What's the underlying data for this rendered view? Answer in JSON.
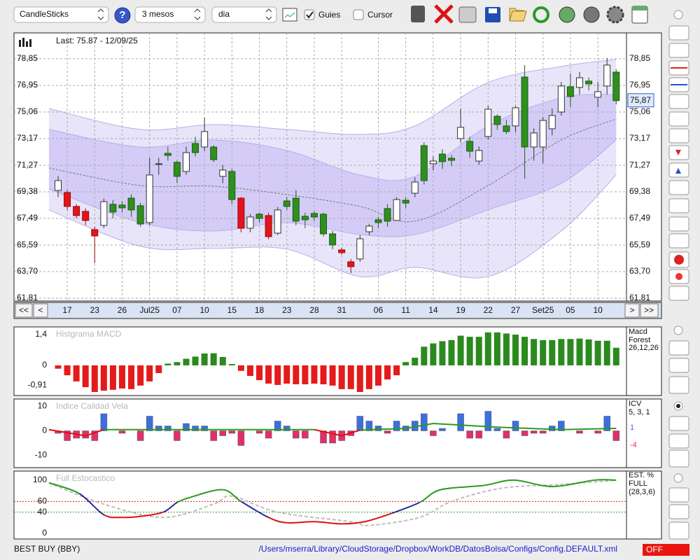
{
  "toolbar": {
    "chart_type": "CandleSticks",
    "help": "?",
    "period": "3 mesos",
    "interval": "dia",
    "guides_label": "Guies",
    "guides_checked": true,
    "cursor_label": "Cursor",
    "cursor_checked": false
  },
  "nav": {
    "first": "<<",
    "prev": "<",
    "next": ">",
    "last": ">>"
  },
  "status": {
    "symbol": "BEST BUY (BBY)",
    "config_path": "/Users/mserra/Library/CloudStorage/Dropbox/WorkDB/DatosBolsa/Configs/Config.DEFAULT.xml",
    "mode": "OFF"
  },
  "chart_data": [
    {
      "type": "candlestick",
      "info": "Last: 75.87 - 12/09/25",
      "last_label": "75,87",
      "grid": true,
      "categories": [
        null,
        "17",
        null,
        null,
        "23",
        null,
        null,
        "26",
        null,
        null,
        "Jul25",
        null,
        null,
        "07",
        null,
        null,
        "10",
        null,
        null,
        "15",
        null,
        null,
        "18",
        null,
        null,
        "23",
        null,
        null,
        "28",
        null,
        null,
        "31",
        null,
        null,
        null,
        "06",
        null,
        null,
        "11",
        null,
        null,
        "14",
        null,
        null,
        "19",
        null,
        null,
        "22",
        null,
        null,
        "27",
        null,
        null,
        "Set25",
        null,
        null,
        "05",
        null,
        null,
        "10",
        null,
        null
      ],
      "open": [
        69.48,
        69.33,
        68.34,
        67.99,
        66.69,
        66.99,
        68.49,
        68.44,
        68.93,
        68.39,
        67.19,
        71.33,
        72.12,
        71.48,
        70.83,
        72.82,
        72.57,
        72.57,
        70.48,
        70.83,
        68.93,
        66.79,
        67.79,
        67.69,
        66.44,
        68.73,
        68.93,
        67.64,
        67.84,
        67.79,
        66.39,
        65.25,
        64.4,
        64.6,
        66.54,
        67.39,
        68.19,
        67.34,
        68.78,
        69.28,
        72.67,
        71.38,
        72.07,
        71.77,
        73.17,
        72.97,
        71.57,
        73.32,
        74.76,
        74.07,
        74.07,
        77.55,
        72.57,
        72.57,
        73.87,
        75.06,
        76.86,
        76.81,
        77.26,
        76.11,
        76.91,
        77.9
      ],
      "high": [
        70.5,
        69.5,
        68.5,
        68.2,
        66.9,
        68.9,
        68.8,
        68.7,
        69.2,
        68.6,
        71.8,
        71.8,
        72.6,
        71.6,
        72.6,
        73.3,
        74.65,
        72.7,
        71.3,
        71.0,
        69.0,
        67.8,
        67.9,
        67.9,
        68.3,
        69.0,
        69.5,
        67.9,
        68.0,
        67.9,
        66.6,
        65.4,
        64.6,
        66.3,
        67.1,
        67.6,
        68.5,
        69.0,
        69.0,
        70.4,
        72.9,
        71.9,
        72.4,
        72.0,
        75.3,
        73.3,
        72.6,
        75.5,
        74.9,
        74.5,
        75.5,
        78.4,
        73.9,
        74.7,
        75.3,
        77.2,
        77.8,
        77.9,
        77.5,
        77.2,
        78.9,
        78.1
      ],
      "low": [
        69.0,
        68.1,
        67.5,
        67.0,
        64.3,
        66.8,
        67.5,
        67.9,
        67.6,
        66.9,
        67.0,
        70.6,
        71.6,
        70.0,
        70.6,
        71.9,
        72.3,
        71.5,
        70.0,
        68.5,
        66.5,
        66.5,
        67.2,
        66.0,
        66.3,
        68.1,
        67.0,
        66.8,
        67.3,
        66.2,
        65.3,
        64.9,
        63.6,
        64.4,
        66.3,
        66.8,
        66.9,
        67.3,
        68.2,
        69.0,
        69.9,
        70.9,
        71.0,
        71.2,
        72.9,
        71.8,
        71.3,
        73.1,
        73.8,
        73.5,
        73.6,
        70.3,
        71.6,
        71.4,
        73.4,
        74.8,
        75.4,
        76.3,
        76.6,
        75.4,
        76.3,
        75.6
      ],
      "close": [
        70.18,
        68.34,
        67.69,
        67.34,
        66.24,
        68.68,
        67.94,
        68.24,
        68.09,
        67.09,
        70.58,
        71.38,
        71.97,
        70.48,
        72.17,
        72.17,
        73.67,
        71.67,
        70.93,
        68.83,
        66.79,
        67.59,
        67.49,
        66.19,
        68.09,
        68.34,
        67.29,
        67.39,
        67.59,
        66.39,
        65.6,
        65.05,
        64.05,
        66.04,
        66.94,
        67.19,
        67.29,
        68.83,
        68.58,
        70.08,
        70.18,
        71.57,
        71.53,
        71.62,
        73.97,
        72.27,
        72.32,
        75.26,
        74.17,
        73.67,
        75.36,
        72.57,
        73.57,
        74.46,
        74.81,
        76.91,
        76.16,
        77.5,
        77.06,
        76.51,
        78.4,
        75.87
      ],
      "candle_colors": [
        "#ffffff",
        "#e3141b",
        "#e3141b",
        "#e3141b",
        "#e3141b",
        "#ffffff",
        "#2f8f1f",
        "#2f8f1f",
        "#2f8f1f",
        "#2f8f1f",
        "#ffffff",
        "#ffffff",
        "#2f8f1f",
        "#2f8f1f",
        "#ffffff",
        "#2f8f1f",
        "#ffffff",
        "#2f8f1f",
        "#ffffff",
        "#2f8f1f",
        "#e3141b",
        "#ffffff",
        "#2f8f1f",
        "#e3141b",
        "#ffffff",
        "#2f8f1f",
        "#2f8f1f",
        "#2f8f1f",
        "#2f8f1f",
        "#2f8f1f",
        "#2f8f1f",
        "#e3141b",
        "#e3141b",
        "#ffffff",
        "#ffffff",
        "#2f8f1f",
        "#2f8f1f",
        "#ffffff",
        "#2f8f1f",
        "#ffffff",
        "#2f8f1f",
        "#ffffff",
        "#2f8f1f",
        "#2f8f1f",
        "#ffffff",
        "#2f8f1f",
        "#ffffff",
        "#ffffff",
        "#2f8f1f",
        "#2f8f1f",
        "#ffffff",
        "#2f8f1f",
        "#ffffff",
        "#ffffff",
        "#ffffff",
        "#ffffff",
        "#2f8f1f",
        "#ffffff",
        "#2f8f1f",
        "#ffffff",
        "#ffffff",
        "#2f8f1f"
      ],
      "bands": {
        "x": [
          -1,
          9,
          17,
          25,
          33,
          39,
          47,
          55,
          61
        ],
        "upper": [
          75.31,
          73.82,
          74.17,
          73.82,
          73.47,
          74.07,
          77.16,
          78.3,
          78.8
        ],
        "inner_upper": [
          73.82,
          72.57,
          73.07,
          72.32,
          70.58,
          70.48,
          74.07,
          76.06,
          76.31
        ],
        "middle": [
          71.08,
          69.83,
          69.78,
          69.18,
          68.34,
          67.29,
          69.83,
          73.07,
          74.56
        ],
        "inner_lower": [
          69.58,
          67.19,
          66.59,
          67.19,
          66.34,
          66.34,
          68.09,
          69.98,
          73.07
        ],
        "lower": [
          68.09,
          65.5,
          65.35,
          65.3,
          63.35,
          64.0,
          63.35,
          66.59,
          70.58
        ]
      },
      "ylim": [
        61.61,
        80.69
      ],
      "yticks": [
        {
          "value": 78.85,
          "label": "78,85"
        },
        {
          "value": 76.95,
          "label": "76,95"
        },
        {
          "value": 75.06,
          "label": "75,06"
        },
        {
          "value": 73.17,
          "label": "73,17"
        },
        {
          "value": 71.27,
          "label": "71,27"
        },
        {
          "value": 69.38,
          "label": "69,38"
        },
        {
          "value": 67.49,
          "label": "67,49"
        },
        {
          "value": 65.59,
          "label": "65,59"
        },
        {
          "value": 63.7,
          "label": "63,70"
        },
        {
          "value": 61.81,
          "label": "61,81"
        }
      ]
    },
    {
      "type": "histogram_macd",
      "title": "Histgrama MACD",
      "legend": [
        "Macd",
        "Forest",
        "26,12,26"
      ],
      "colors": {
        "positive": "#2a8a1e",
        "negative": "#e51b1b"
      },
      "values": [
        -0.15,
        -0.45,
        -0.73,
        -0.99,
        -1.21,
        -1.15,
        -1.11,
        -1.05,
        -1.08,
        -0.92,
        -0.73,
        -0.35,
        0.08,
        0.15,
        0.3,
        0.4,
        0.54,
        0.55,
        0.38,
        0.06,
        -0.25,
        -0.48,
        -0.67,
        -0.83,
        -0.89,
        -0.83,
        -0.86,
        -0.86,
        -0.83,
        -0.86,
        -0.92,
        -1.08,
        -1.08,
        -1.21,
        -1.08,
        -0.92,
        -0.64,
        -0.45,
        0.15,
        0.35,
        0.85,
        1.0,
        1.1,
        1.15,
        1.35,
        1.3,
        1.3,
        1.5,
        1.5,
        1.45,
        1.4,
        1.3,
        1.2,
        1.15,
        1.15,
        1.2,
        1.2,
        1.22,
        1.18,
        1.12,
        1.12,
        0.8
      ],
      "ylim": [
        -1.37,
        1.75
      ],
      "yticks": [
        {
          "value": 1.4,
          "label": "1,4"
        },
        0,
        {
          "value": -0.91,
          "label": "-0,91"
        }
      ]
    },
    {
      "type": "icv",
      "title": "Indice Calidad Vela",
      "legend": [
        "ICV",
        "5, 3, 1"
      ],
      "line_label": "1",
      "bar_label": "-4",
      "colors": {
        "positive": "#3b6fe0",
        "negative": "#e0306a",
        "line_up": "#2a9a1e",
        "line_down": "#e01010"
      },
      "values": [
        -1,
        -4,
        -3,
        -3,
        -4,
        7,
        0,
        -1,
        0,
        -4,
        6,
        2,
        2,
        -4,
        3,
        2,
        2,
        -4,
        -2,
        -1,
        -6,
        0,
        -1,
        -3,
        4,
        2,
        -3,
        -3,
        0,
        -5,
        -5,
        -4,
        -2,
        6,
        4,
        2,
        -1,
        4,
        2,
        4,
        7,
        -2,
        1,
        0,
        7,
        -3,
        -3,
        8,
        1,
        -3,
        4,
        -2,
        -1,
        -1,
        2,
        4,
        0,
        -1,
        0,
        -1,
        6,
        -4
      ],
      "line": {
        "x": [
          -1,
          3,
          5,
          20,
          28,
          31,
          33,
          38,
          41,
          48,
          55,
          61
        ],
        "values": [
          0.5,
          -2,
          0.5,
          0.5,
          0.5,
          -2,
          0.3,
          1,
          3,
          1.5,
          0.5,
          1
        ]
      },
      "ylim": [
        -15,
        13
      ],
      "yticks": [
        10,
        0,
        -10
      ]
    },
    {
      "type": "stochastic",
      "title": "Full Estocastico",
      "legend": [
        "EST. %",
        "FULL",
        "(28,3,6)"
      ],
      "colors": {
        "high": "#2a9a1e",
        "mid": "#2a2a9a",
        "low": "#e01010",
        "signal": "#bdbdbd"
      },
      "main": {
        "x": [
          -1,
          2.3,
          5,
          7,
          9,
          11.5,
          13,
          14.5,
          18,
          20,
          23,
          25,
          28,
          31,
          33.5,
          36.5,
          39.5,
          41.8,
          46.5,
          49.8,
          54,
          58.6,
          61
        ],
        "values": [
          95,
          75,
          35,
          30,
          32,
          40,
          58,
          68,
          82,
          60,
          30,
          20,
          22,
          18,
          22,
          38,
          58,
          82,
          90,
          100,
          88,
          100,
          100
        ]
      },
      "signal": {
        "x": [
          -1,
          5,
          11.5,
          17,
          19,
          24,
          32,
          34,
          39.5,
          43,
          48.5,
          55,
          61
        ],
        "values": [
          95,
          55,
          30,
          55,
          70,
          40,
          22,
          15,
          30,
          60,
          85,
          92,
          100
        ]
      },
      "guides": [
        {
          "value": 60,
          "color": "#cc2222"
        },
        {
          "value": 40,
          "color": "#2a9a1e"
        }
      ],
      "ylim": [
        -10.5,
        117
      ],
      "yticks": [
        100,
        60,
        40,
        0
      ]
    }
  ]
}
